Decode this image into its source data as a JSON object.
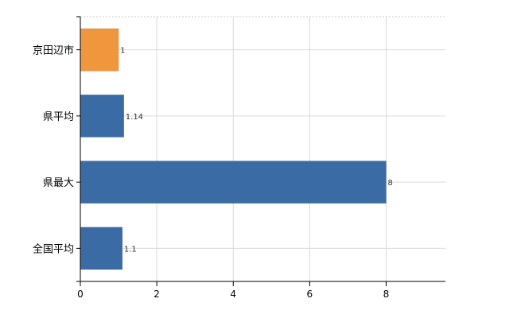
{
  "chart_data": {
    "type": "bar",
    "orientation": "horizontal",
    "categories": [
      "京田辺市",
      "県平均",
      "県最大",
      "全国平均"
    ],
    "values": [
      1,
      1.14,
      8,
      1.1
    ],
    "value_labels": [
      "1",
      "1.14",
      "8",
      "1.1"
    ],
    "bar_colors": [
      "#f0963c",
      "#3b6ba5",
      "#3b6ba5",
      "#3b6ba5"
    ],
    "xlim": [
      0,
      9.55
    ],
    "xticks": [
      0,
      2,
      4,
      6,
      8
    ],
    "xtick_labels": [
      "0",
      "2",
      "4",
      "6",
      "8"
    ],
    "title": "",
    "xlabel": "",
    "ylabel": "",
    "grid": true
  }
}
